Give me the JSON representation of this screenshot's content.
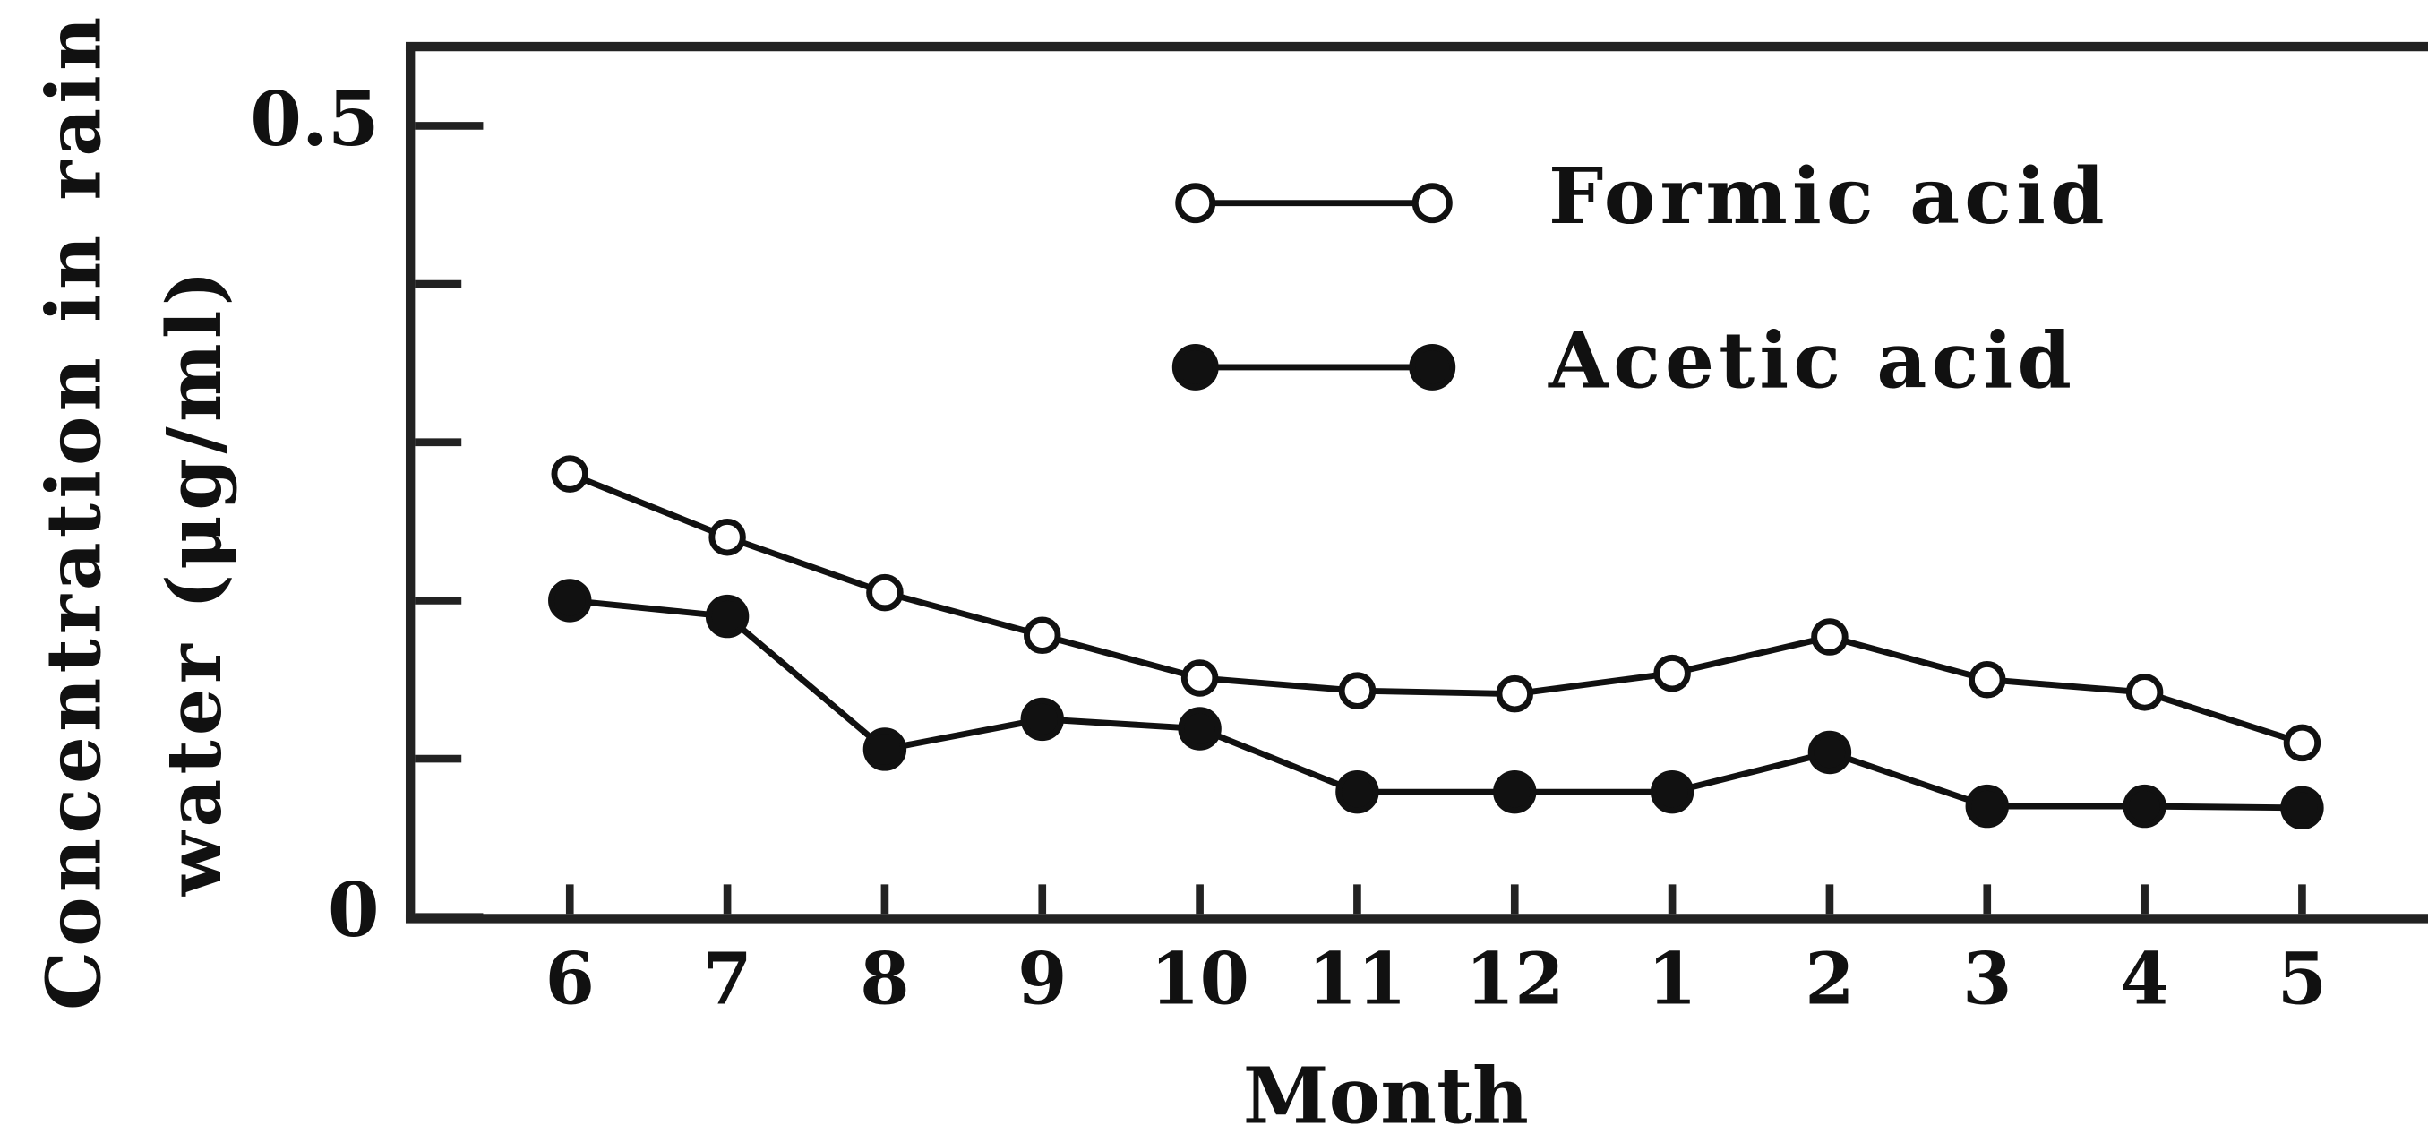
{
  "chart_data": {
    "type": "line",
    "y_label_lines": [
      "Concentration in rain",
      "water (μg/ml)"
    ],
    "x_label": "Month",
    "categories": [
      "6",
      "7",
      "8",
      "9",
      "10",
      "11",
      "12",
      "1",
      "2",
      "3",
      "4",
      "5"
    ],
    "series": [
      {
        "name": "Formic acid",
        "color": "#111111",
        "marker": "open",
        "values": [
          0.28,
          0.24,
          0.205,
          0.178,
          0.151,
          0.143,
          0.141,
          0.154,
          0.177,
          0.15,
          0.142,
          0.11
        ]
      },
      {
        "name": "Acetic acid",
        "color": "#111111",
        "marker": "filled",
        "values": [
          0.2,
          0.19,
          0.106,
          0.125,
          0.119,
          0.079,
          0.079,
          0.079,
          0.104,
          0.07,
          0.07,
          0.069
        ]
      }
    ],
    "ylim": [
      0,
      0.55
    ],
    "yticks": [
      0,
      0.5
    ],
    "yminorticks": [
      0.1,
      0.2,
      0.3,
      0.4
    ],
    "legend": "top-center"
  }
}
